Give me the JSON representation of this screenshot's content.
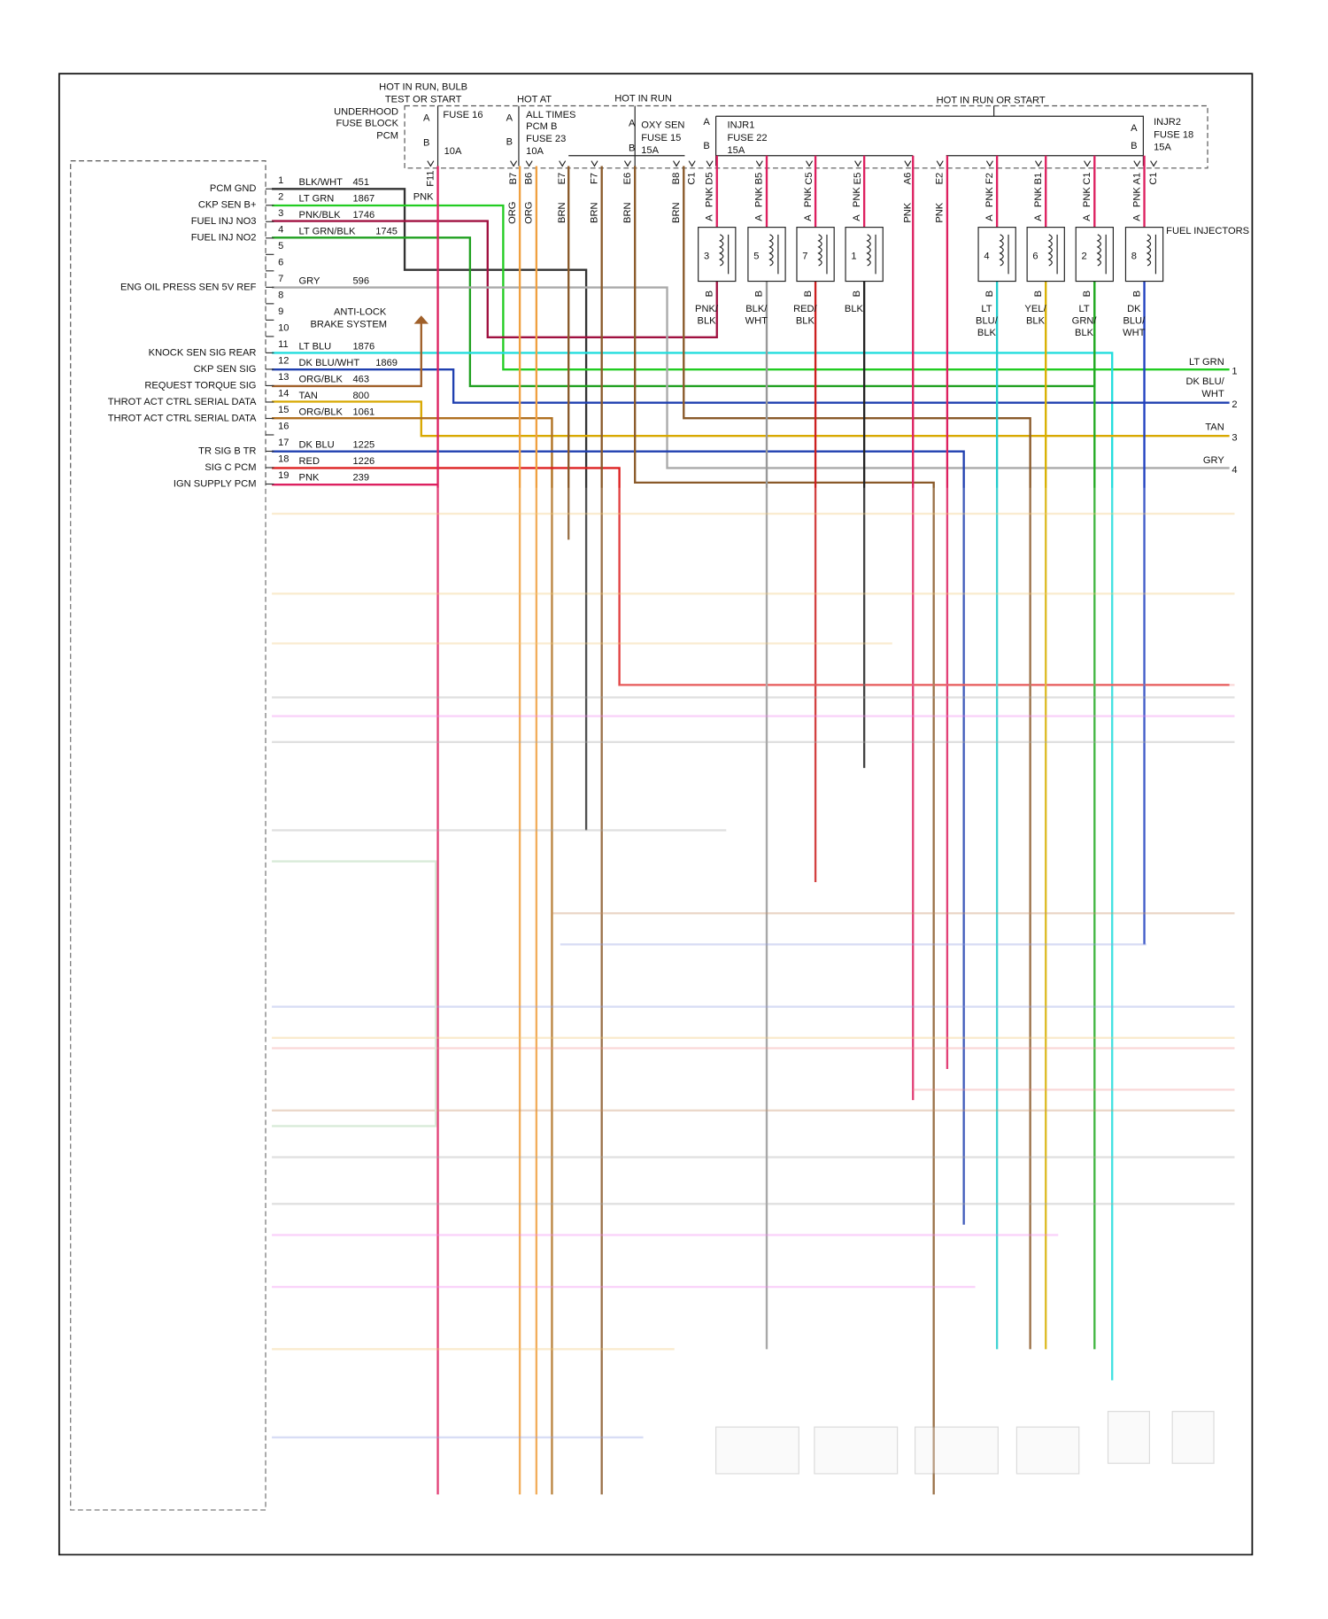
{
  "fuse_block": {
    "labels": [
      "HOT IN RUN, BULB",
      "TEST OR START",
      "UNDERHOOD",
      "FUSE BLOCK",
      "PCM",
      "A",
      "FUSE 16",
      "B",
      "10A",
      "HOT AT",
      "A",
      "ALL TIMES",
      "PCM B",
      "B",
      "FUSE 23",
      "10A",
      "HOT IN RUN",
      "A",
      "OXY SEN",
      "FUSE 15",
      "B",
      "15A",
      "HOT IN RUN OR START",
      "A",
      "INJR1",
      "FUSE 22",
      "B",
      "15A",
      "A",
      "INJR2",
      "FUSE 18",
      "B",
      "15A"
    ]
  },
  "pcm_pins": [
    {
      "num": 1,
      "name": "PCM GND",
      "wire": "BLK/WHT",
      "circuit": 451
    },
    {
      "num": 2,
      "name": "CKP SEN B+",
      "wire": "LT GRN",
      "circuit": 1867
    },
    {
      "num": 3,
      "name": "FUEL INJ NO3",
      "wire": "PNK/BLK",
      "circuit": 1746
    },
    {
      "num": 4,
      "name": "FUEL INJ NO2",
      "wire": "LT GRN/BLK",
      "circuit": 1745
    },
    {
      "num": 5
    },
    {
      "num": 6
    },
    {
      "num": 7,
      "name": "ENG OIL PRESS SEN 5V REF",
      "wire": "GRY",
      "circuit": 596
    },
    {
      "num": 8
    },
    {
      "num": 9
    },
    {
      "num": 10
    },
    {
      "num": 11,
      "name": "KNOCK SEN SIG REAR",
      "wire": "LT BLU",
      "circuit": 1876
    },
    {
      "num": 12,
      "name": "CKP SEN SIG",
      "wire": "DK BLU/WHT",
      "circuit": 1869
    },
    {
      "num": 13,
      "name": "REQUEST TORQUE SIG",
      "wire": "ORG/BLK",
      "circuit": 463
    },
    {
      "num": 14,
      "name": "THROT ACT CTRL SERIAL DATA",
      "wire": "TAN",
      "circuit": 800
    },
    {
      "num": 15,
      "name": "THROT ACT CTRL SERIAL DATA",
      "wire": "ORG/BLK",
      "circuit": 1061
    },
    {
      "num": 16
    },
    {
      "num": 17,
      "name": "TR SIG B TR",
      "wire": "DK BLU",
      "circuit": 1225
    },
    {
      "num": 18,
      "name": "SIG C PCM",
      "wire": "RED",
      "circuit": 1226
    },
    {
      "num": 19,
      "name": "IGN SUPPLY PCM",
      "wire": "PNK",
      "circuit": 239
    }
  ],
  "abs_label": [
    "ANTI-LOCK",
    "BRAKE SYSTEM"
  ],
  "pnk_label": "PNK",
  "connector_pins": [
    "F11",
    "B7",
    "B6",
    "E7",
    "F7",
    "E6",
    "B8",
    "C1",
    "D5",
    "B5",
    "C5",
    "E5",
    "A6",
    "E2",
    "F2",
    "B1",
    "C1",
    "A1",
    "C1"
  ],
  "wire_colors": [
    "ORG",
    "ORG",
    "BRN",
    "BRN",
    "BRN",
    "BRN",
    "PNK",
    "PNK"
  ],
  "injectors": {
    "title": "FUEL INJECTORS",
    "items": [
      {
        "number": 3,
        "supply": "PNK",
        "terminals": [
          "A",
          "B"
        ],
        "wire": [
          "PNK/",
          "BLK"
        ]
      },
      {
        "number": 5,
        "supply": "PNK",
        "terminals": [
          "A",
          "B"
        ],
        "wire": [
          "BLK/",
          "WHT"
        ]
      },
      {
        "number": 7,
        "supply": "PNK",
        "terminals": [
          "A",
          "B"
        ],
        "wire": [
          "RED/",
          "BLK"
        ]
      },
      {
        "number": 1,
        "supply": "PNK",
        "terminals": [
          "A",
          "B"
        ],
        "wire": [
          "BLK"
        ]
      },
      {
        "number": 4,
        "supply": "PNK",
        "terminals": [
          "A",
          "B"
        ],
        "wire": [
          "LT",
          "BLU/",
          "BLK"
        ]
      },
      {
        "number": 6,
        "supply": "PNK",
        "terminals": [
          "A",
          "B"
        ],
        "wire": [
          "YEL/",
          "BLK"
        ]
      },
      {
        "number": 2,
        "supply": "PNK",
        "terminals": [
          "A",
          "B"
        ],
        "wire": [
          "LT",
          "GRN/",
          "BLK"
        ]
      },
      {
        "number": 8,
        "supply": "PNK",
        "terminals": [
          "A",
          "B"
        ],
        "wire": [
          "DK",
          "BLU/",
          "WHT"
        ]
      }
    ]
  },
  "outputs": [
    {
      "label": [
        "LT GRN"
      ],
      "pin": 1
    },
    {
      "label": [
        "DK BLU/",
        "WHT"
      ],
      "pin": 2
    },
    {
      "label": [
        "TAN"
      ],
      "pin": 3
    },
    {
      "label": [
        "GRY"
      ],
      "pin": 4
    }
  ]
}
